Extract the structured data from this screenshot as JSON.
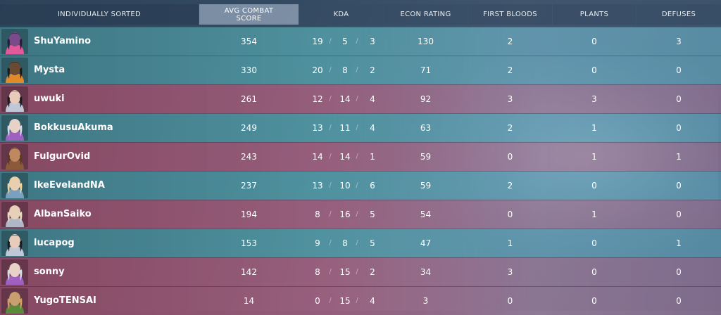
{
  "header": {
    "player": "INDIVIDUALLY SORTED",
    "acs_line1": "AVG COMBAT",
    "acs_line2": "SCORE",
    "kda": "KDA",
    "econ": "ECON RATING",
    "first_bloods": "FIRST BLOODS",
    "plants": "PLANTS",
    "defuses": "DEFUSES"
  },
  "kda_separator": "/",
  "rows": [
    {
      "name": "ShuYamino",
      "acs": "354",
      "k": "19",
      "d": "5",
      "a": "3",
      "econ": "130",
      "fb": "2",
      "plants": "0",
      "defuses": "3",
      "team": "blue",
      "avatar": {
        "skin": "#7a4a8a",
        "hair": "#2a1a3a",
        "accent": "#e05a9a"
      }
    },
    {
      "name": "Mysta",
      "acs": "330",
      "k": "20",
      "d": "8",
      "a": "2",
      "econ": "71",
      "fb": "2",
      "plants": "0",
      "defuses": "0",
      "team": "blue",
      "avatar": {
        "skin": "#6b4a34",
        "hair": "#1a1a1a",
        "accent": "#e08a2a"
      }
    },
    {
      "name": "uwuki",
      "acs": "261",
      "k": "12",
      "d": "14",
      "a": "4",
      "econ": "92",
      "fb": "3",
      "plants": "3",
      "defuses": "0",
      "team": "red",
      "avatar": {
        "skin": "#e8cbb8",
        "hair": "#1a1a22",
        "accent": "#c0c8d8"
      }
    },
    {
      "name": "BokkusuAkuma",
      "acs": "249",
      "k": "13",
      "d": "11",
      "a": "4",
      "econ": "63",
      "fb": "2",
      "plants": "1",
      "defuses": "0",
      "team": "blue",
      "avatar": {
        "skin": "#e8d2c8",
        "hair": "#d8dce8",
        "accent": "#a060c0"
      }
    },
    {
      "name": "FulgurOvid",
      "acs": "243",
      "k": "14",
      "d": "14",
      "a": "1",
      "econ": "59",
      "fb": "0",
      "plants": "1",
      "defuses": "1",
      "team": "red",
      "avatar": {
        "skin": "#c08860",
        "hair": "#5a3a22",
        "accent": "#8a5a3a"
      }
    },
    {
      "name": "IkeEvelandNA",
      "acs": "237",
      "k": "13",
      "d": "10",
      "a": "6",
      "econ": "59",
      "fb": "2",
      "plants": "0",
      "defuses": "0",
      "team": "blue",
      "avatar": {
        "skin": "#e8cfb0",
        "hair": "#e8d8a0",
        "accent": "#7aa0c0"
      }
    },
    {
      "name": "AlbanSaiko",
      "acs": "194",
      "k": "8",
      "d": "16",
      "a": "5",
      "econ": "54",
      "fb": "0",
      "plants": "1",
      "defuses": "0",
      "team": "red",
      "avatar": {
        "skin": "#e8d0b8",
        "hair": "#e8dcc0",
        "accent": "#b0b8c8"
      }
    },
    {
      "name": "lucapog",
      "acs": "153",
      "k": "9",
      "d": "8",
      "a": "5",
      "econ": "47",
      "fb": "1",
      "plants": "0",
      "defuses": "1",
      "team": "blue",
      "avatar": {
        "skin": "#e8cbb8",
        "hair": "#1a1a22",
        "accent": "#c0c8d8"
      }
    },
    {
      "name": "sonny",
      "acs": "142",
      "k": "8",
      "d": "15",
      "a": "2",
      "econ": "34",
      "fb": "3",
      "plants": "0",
      "defuses": "0",
      "team": "red",
      "avatar": {
        "skin": "#e8d2c8",
        "hair": "#d8dce8",
        "accent": "#a060c0"
      }
    },
    {
      "name": "YugoTENSAI",
      "acs": "14",
      "k": "0",
      "d": "15",
      "a": "4",
      "econ": "3",
      "fb": "0",
      "plants": "0",
      "defuses": "0",
      "team": "red",
      "avatar": {
        "skin": "#c8a070",
        "hair": "#d0a060",
        "accent": "#5a8a3a"
      }
    }
  ]
}
